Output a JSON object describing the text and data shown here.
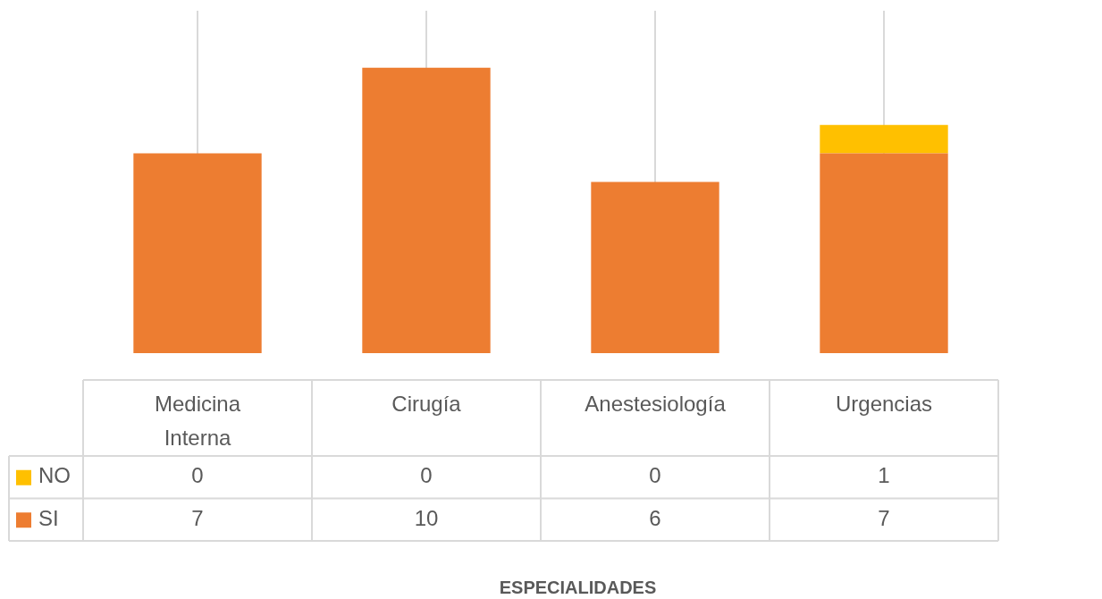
{
  "chart_data": {
    "type": "bar",
    "annotations": [
      "ESPECIALIDADES"
    ],
    "categories": [
      "Medicina Interna",
      "Cirugía",
      "Anestesiología",
      "Urgencias"
    ],
    "series": [
      {
        "name": "SI",
        "color": "#ed7d31",
        "values": [
          7,
          10,
          6,
          7
        ]
      },
      {
        "name": "NO",
        "color": "#ffc000",
        "values": [
          0,
          0,
          0,
          1
        ]
      }
    ],
    "stacked": true,
    "data_labels": true,
    "grid": "x",
    "legend": "bottom"
  }
}
